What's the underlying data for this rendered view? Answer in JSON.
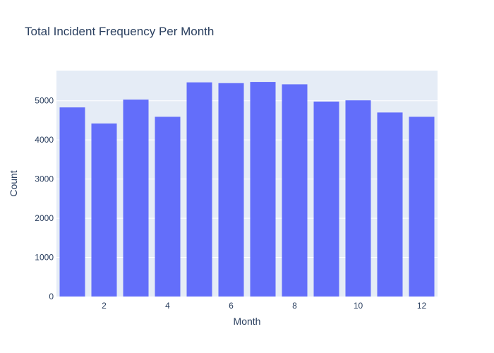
{
  "chart_data": {
    "type": "bar",
    "title": "Total Incident Frequency Per Month",
    "xlabel": "Month",
    "ylabel": "Count",
    "x": [
      1,
      2,
      3,
      4,
      5,
      6,
      7,
      8,
      9,
      10,
      11,
      12
    ],
    "values": [
      4830,
      4420,
      5030,
      4590,
      5470,
      5450,
      5480,
      5420,
      4980,
      5010,
      4700,
      4590
    ],
    "xlim": [
      0.5,
      12.5
    ],
    "ylim": [
      0,
      5770
    ],
    "xticks": [
      2,
      4,
      6,
      8,
      10,
      12
    ],
    "yticks": [
      0,
      1000,
      2000,
      3000,
      4000,
      5000
    ],
    "grid": true,
    "legend": "none",
    "colors": {
      "bar": "#636efa",
      "plot_background": "#e5ecf6",
      "grid": "#ffffff",
      "text": "#2a3f5f"
    }
  }
}
